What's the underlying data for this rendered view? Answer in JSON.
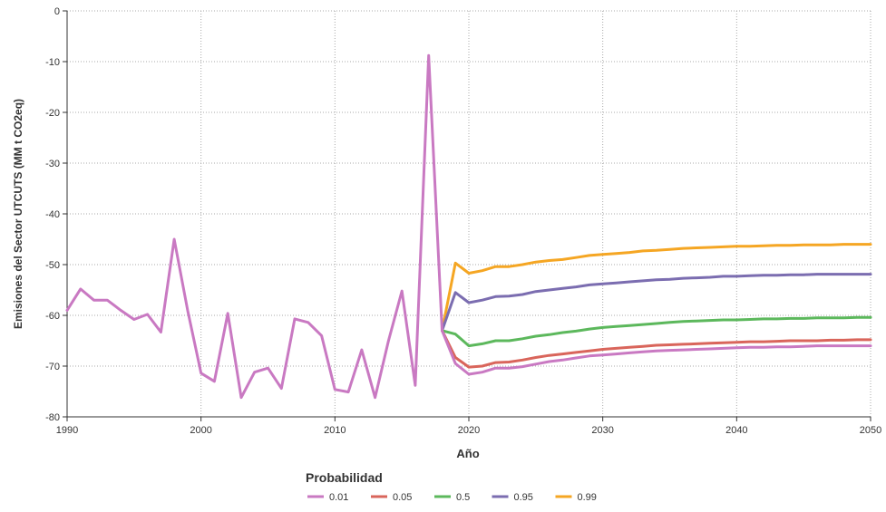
{
  "chart_data": {
    "type": "line",
    "title": "",
    "xlabel": "Año",
    "ylabel": "Emisiones del Sector UTCUTS (MM t CO2eq)",
    "xlim": [
      1990,
      2050
    ],
    "ylim": [
      -80,
      0
    ],
    "xticks": [
      1990,
      2000,
      2010,
      2020,
      2030,
      2040,
      2050
    ],
    "yticks": [
      0,
      -10,
      -20,
      -30,
      -40,
      -50,
      -60,
      -70,
      -80
    ],
    "grid": true,
    "legend": {
      "title": "Probabilidad",
      "placement": "bottom"
    },
    "series": [
      {
        "name": "0.99",
        "color": "#f5a623",
        "points": [
          [
            2018,
            -63.0
          ],
          [
            2019,
            -49.7
          ],
          [
            2020,
            -51.7
          ],
          [
            2021,
            -51.2
          ],
          [
            2022,
            -50.4
          ],
          [
            2023,
            -50.4
          ],
          [
            2024,
            -50.0
          ],
          [
            2025,
            -49.5
          ],
          [
            2026,
            -49.2
          ],
          [
            2027,
            -49.0
          ],
          [
            2028,
            -48.6
          ],
          [
            2029,
            -48.2
          ],
          [
            2030,
            -48.0
          ],
          [
            2031,
            -47.8
          ],
          [
            2032,
            -47.6
          ],
          [
            2033,
            -47.3
          ],
          [
            2034,
            -47.2
          ],
          [
            2035,
            -47.0
          ],
          [
            2036,
            -46.8
          ],
          [
            2037,
            -46.7
          ],
          [
            2038,
            -46.6
          ],
          [
            2039,
            -46.5
          ],
          [
            2040,
            -46.4
          ],
          [
            2041,
            -46.4
          ],
          [
            2042,
            -46.3
          ],
          [
            2043,
            -46.2
          ],
          [
            2044,
            -46.2
          ],
          [
            2045,
            -46.1
          ],
          [
            2046,
            -46.1
          ],
          [
            2047,
            -46.1
          ],
          [
            2048,
            -46.0
          ],
          [
            2049,
            -46.0
          ],
          [
            2050,
            -46.0
          ]
        ]
      },
      {
        "name": "0.95",
        "color": "#7b6db0",
        "points": [
          [
            2018,
            -63.0
          ],
          [
            2019,
            -55.5
          ],
          [
            2020,
            -57.5
          ],
          [
            2021,
            -57.0
          ],
          [
            2022,
            -56.3
          ],
          [
            2023,
            -56.2
          ],
          [
            2024,
            -55.9
          ],
          [
            2025,
            -55.3
          ],
          [
            2026,
            -55.0
          ],
          [
            2027,
            -54.7
          ],
          [
            2028,
            -54.4
          ],
          [
            2029,
            -54.0
          ],
          [
            2030,
            -53.8
          ],
          [
            2031,
            -53.6
          ],
          [
            2032,
            -53.4
          ],
          [
            2033,
            -53.2
          ],
          [
            2034,
            -53.0
          ],
          [
            2035,
            -52.9
          ],
          [
            2036,
            -52.7
          ],
          [
            2037,
            -52.6
          ],
          [
            2038,
            -52.5
          ],
          [
            2039,
            -52.3
          ],
          [
            2040,
            -52.3
          ],
          [
            2041,
            -52.2
          ],
          [
            2042,
            -52.1
          ],
          [
            2043,
            -52.1
          ],
          [
            2044,
            -52.0
          ],
          [
            2045,
            -52.0
          ],
          [
            2046,
            -51.9
          ],
          [
            2047,
            -51.9
          ],
          [
            2048,
            -51.9
          ],
          [
            2049,
            -51.9
          ],
          [
            2050,
            -51.9
          ]
        ]
      },
      {
        "name": "0.5",
        "color": "#5cb85c",
        "points": [
          [
            2018,
            -63.0
          ],
          [
            2019,
            -63.7
          ],
          [
            2020,
            -66.0
          ],
          [
            2021,
            -65.6
          ],
          [
            2022,
            -65.0
          ],
          [
            2023,
            -65.0
          ],
          [
            2024,
            -64.6
          ],
          [
            2025,
            -64.1
          ],
          [
            2026,
            -63.8
          ],
          [
            2027,
            -63.4
          ],
          [
            2028,
            -63.1
          ],
          [
            2029,
            -62.7
          ],
          [
            2030,
            -62.4
          ],
          [
            2031,
            -62.2
          ],
          [
            2032,
            -62.0
          ],
          [
            2033,
            -61.8
          ],
          [
            2034,
            -61.6
          ],
          [
            2035,
            -61.4
          ],
          [
            2036,
            -61.2
          ],
          [
            2037,
            -61.1
          ],
          [
            2038,
            -61.0
          ],
          [
            2039,
            -60.9
          ],
          [
            2040,
            -60.9
          ],
          [
            2041,
            -60.8
          ],
          [
            2042,
            -60.7
          ],
          [
            2043,
            -60.7
          ],
          [
            2044,
            -60.6
          ],
          [
            2045,
            -60.6
          ],
          [
            2046,
            -60.5
          ],
          [
            2047,
            -60.5
          ],
          [
            2048,
            -60.5
          ],
          [
            2049,
            -60.4
          ],
          [
            2050,
            -60.4
          ]
        ]
      },
      {
        "name": "0.05",
        "color": "#d9655b",
        "points": [
          [
            2018,
            -63.0
          ],
          [
            2019,
            -68.3
          ],
          [
            2020,
            -70.2
          ],
          [
            2021,
            -70.0
          ],
          [
            2022,
            -69.3
          ],
          [
            2023,
            -69.2
          ],
          [
            2024,
            -68.8
          ],
          [
            2025,
            -68.3
          ],
          [
            2026,
            -67.9
          ],
          [
            2027,
            -67.6
          ],
          [
            2028,
            -67.3
          ],
          [
            2029,
            -67.0
          ],
          [
            2030,
            -66.7
          ],
          [
            2031,
            -66.5
          ],
          [
            2032,
            -66.3
          ],
          [
            2033,
            -66.1
          ],
          [
            2034,
            -65.9
          ],
          [
            2035,
            -65.8
          ],
          [
            2036,
            -65.7
          ],
          [
            2037,
            -65.6
          ],
          [
            2038,
            -65.5
          ],
          [
            2039,
            -65.4
          ],
          [
            2040,
            -65.3
          ],
          [
            2041,
            -65.2
          ],
          [
            2042,
            -65.2
          ],
          [
            2043,
            -65.1
          ],
          [
            2044,
            -65.0
          ],
          [
            2045,
            -65.0
          ],
          [
            2046,
            -65.0
          ],
          [
            2047,
            -64.9
          ],
          [
            2048,
            -64.9
          ],
          [
            2049,
            -64.8
          ],
          [
            2050,
            -64.8
          ]
        ]
      },
      {
        "name": "0.01",
        "color": "#c979c2",
        "points": [
          [
            1990,
            -59.0
          ],
          [
            1991,
            -54.8
          ],
          [
            1992,
            -57.0
          ],
          [
            1993,
            -57.0
          ],
          [
            1994,
            -59.0
          ],
          [
            1995,
            -60.8
          ],
          [
            1996,
            -59.8
          ],
          [
            1997,
            -63.3
          ],
          [
            1998,
            -45.0
          ],
          [
            1999,
            -59.0
          ],
          [
            2000,
            -71.4
          ],
          [
            2001,
            -73.0
          ],
          [
            2002,
            -59.6
          ],
          [
            2003,
            -76.2
          ],
          [
            2004,
            -71.2
          ],
          [
            2005,
            -70.4
          ],
          [
            2006,
            -74.4
          ],
          [
            2007,
            -60.7
          ],
          [
            2008,
            -61.4
          ],
          [
            2009,
            -64.0
          ],
          [
            2010,
            -74.6
          ],
          [
            2011,
            -75.1
          ],
          [
            2012,
            -66.8
          ],
          [
            2013,
            -76.2
          ],
          [
            2014,
            -65.0
          ],
          [
            2015,
            -55.2
          ],
          [
            2016,
            -73.8
          ],
          [
            2017,
            -8.8
          ],
          [
            2018,
            -63.0
          ],
          [
            2019,
            -69.5
          ],
          [
            2020,
            -71.6
          ],
          [
            2021,
            -71.2
          ],
          [
            2022,
            -70.4
          ],
          [
            2023,
            -70.4
          ],
          [
            2024,
            -70.1
          ],
          [
            2025,
            -69.6
          ],
          [
            2026,
            -69.1
          ],
          [
            2027,
            -68.8
          ],
          [
            2028,
            -68.4
          ],
          [
            2029,
            -68.0
          ],
          [
            2030,
            -67.8
          ],
          [
            2031,
            -67.6
          ],
          [
            2032,
            -67.4
          ],
          [
            2033,
            -67.2
          ],
          [
            2034,
            -67.0
          ],
          [
            2035,
            -66.9
          ],
          [
            2036,
            -66.8
          ],
          [
            2037,
            -66.7
          ],
          [
            2038,
            -66.6
          ],
          [
            2039,
            -66.5
          ],
          [
            2040,
            -66.4
          ],
          [
            2041,
            -66.3
          ],
          [
            2042,
            -66.3
          ],
          [
            2043,
            -66.2
          ],
          [
            2044,
            -66.2
          ],
          [
            2045,
            -66.1
          ],
          [
            2046,
            -66.0
          ],
          [
            2047,
            -66.0
          ],
          [
            2048,
            -66.0
          ],
          [
            2049,
            -66.0
          ],
          [
            2050,
            -66.0
          ]
        ]
      }
    ],
    "legend_order": [
      "0.01",
      "0.05",
      "0.5",
      "0.95",
      "0.99"
    ],
    "axis_color": "#333333",
    "grid_color": "#aaaaaa"
  }
}
